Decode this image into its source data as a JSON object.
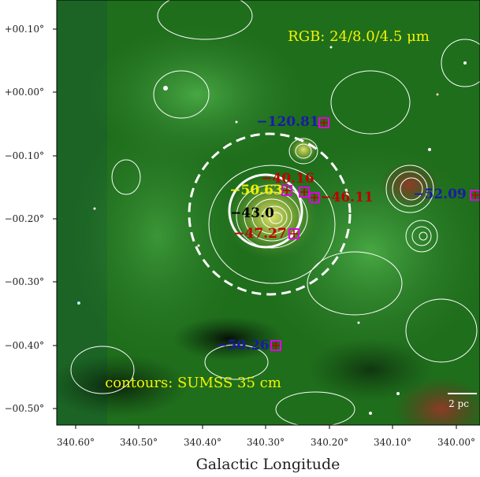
{
  "figure": {
    "title_rgb": "RGB: 24/8.0/4.5 μm",
    "contours_label": "contours: SUMSS 35 cm",
    "scale_bar_label": "2 pc",
    "xlabel": "Galactic Longitude"
  },
  "axes": {
    "x_ticks": [
      "340.60°",
      "340.50°",
      "340.40°",
      "340.30°",
      "340.20°",
      "340.10°",
      "340.00°"
    ],
    "y_ticks": [
      "+00.10°",
      "+00.00°",
      "−00.10°",
      "−00.20°",
      "−00.30°",
      "−00.40°",
      "−00.50°"
    ]
  },
  "annotations": [
    {
      "id": "v-120-81",
      "text": "−120.81",
      "color": "#1a1aa8"
    },
    {
      "id": "v-40-16",
      "text": "−40.16",
      "color": "#c00000"
    },
    {
      "id": "v-50-63",
      "text": "−50.63",
      "color": "#f0f000"
    },
    {
      "id": "v-46-11",
      "text": "−46.11",
      "color": "#c00000"
    },
    {
      "id": "v-52-09",
      "text": "−52.09",
      "color": "#1a1aa8"
    },
    {
      "id": "v-43-0",
      "text": "−43.0",
      "color": "#000000"
    },
    {
      "id": "v-47-27",
      "text": "−47.27",
      "color": "#c00000"
    },
    {
      "id": "v-50-26",
      "text": "−50.26",
      "color": "#1a1aa8"
    }
  ],
  "colors": {
    "background_field": "#1f6e1c",
    "contours": "#ffffff",
    "marker_square": "#e000e0",
    "marker_cross": "#c00000"
  }
}
